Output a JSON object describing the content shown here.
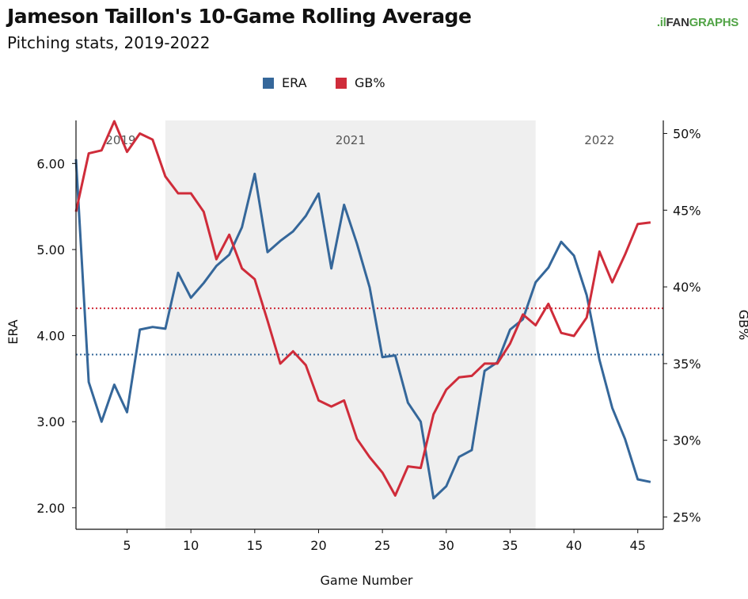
{
  "header": {
    "title": "Jameson Taillon's 10-Game Rolling Average",
    "subtitle": "Pitching stats, 2019-2022",
    "logo_prefix": ".il",
    "logo_fan": "FAN",
    "logo_graphs": "GRAPHS"
  },
  "chart_data": {
    "type": "line",
    "xlabel": "Game Number",
    "ylabel_left": "ERA",
    "ylabel_right": "GB%",
    "xlim": [
      1,
      47
    ],
    "ylim_left": [
      1.75,
      6.5
    ],
    "ylim_right": [
      24.2,
      50.85
    ],
    "x_ticks": [
      5,
      10,
      15,
      20,
      25,
      30,
      35,
      40,
      45
    ],
    "y_ticks_left": [
      2.0,
      3.0,
      4.0,
      5.0,
      6.0
    ],
    "y_tick_labels_left": [
      "2.00",
      "3.00",
      "4.00",
      "5.00",
      "6.00"
    ],
    "y_ticks_right": [
      25,
      30,
      35,
      40,
      45,
      50
    ],
    "y_tick_labels_right": [
      "25%",
      "30%",
      "35%",
      "40%",
      "45%",
      "50%"
    ],
    "legend_position": "top-center",
    "grid": false,
    "eras": [
      {
        "label": "2019",
        "start": 1,
        "end": 8,
        "shaded": false
      },
      {
        "label": "2021",
        "start": 8,
        "end": 37,
        "shaded": true
      },
      {
        "label": "2022",
        "start": 37,
        "end": 47,
        "shaded": false
      }
    ],
    "x": [
      1,
      2,
      3,
      4,
      5,
      6,
      7,
      8,
      9,
      10,
      11,
      12,
      13,
      14,
      15,
      16,
      17,
      18,
      19,
      20,
      21,
      22,
      23,
      24,
      25,
      26,
      27,
      28,
      29,
      30,
      31,
      32,
      33,
      34,
      35,
      36,
      37,
      38,
      39,
      40,
      41,
      42,
      43,
      44,
      45,
      46
    ],
    "series": [
      {
        "name": "ERA",
        "axis": "left",
        "color": "#35679a",
        "values": [
          6.05,
          3.46,
          3.0,
          3.43,
          3.11,
          4.07,
          4.1,
          4.08,
          4.73,
          4.44,
          4.61,
          4.81,
          4.94,
          5.26,
          5.88,
          4.97,
          5.1,
          5.21,
          5.39,
          5.65,
          4.78,
          5.52,
          5.07,
          4.56,
          3.75,
          3.77,
          3.22,
          3.0,
          2.11,
          2.25,
          2.59,
          2.67,
          3.59,
          3.69,
          4.07,
          4.19,
          4.62,
          4.79,
          5.09,
          4.93,
          4.47,
          3.72,
          3.16,
          2.8,
          2.33,
          2.3
        ]
      },
      {
        "name": "GB%",
        "axis": "right",
        "color": "#cf2c3a",
        "values": [
          44.9,
          48.7,
          48.9,
          50.8,
          48.8,
          50.0,
          49.6,
          47.2,
          46.1,
          46.1,
          44.9,
          41.8,
          43.4,
          41.2,
          40.5,
          37.8,
          35.0,
          35.8,
          34.9,
          32.6,
          32.2,
          32.6,
          30.1,
          28.9,
          27.9,
          26.4,
          28.3,
          28.2,
          31.7,
          33.3,
          34.1,
          34.2,
          35.0,
          35.0,
          36.3,
          38.2,
          37.5,
          38.9,
          37.0,
          36.8,
          38.0,
          42.3,
          40.3,
          42.1,
          44.1,
          44.2
        ]
      }
    ],
    "reference_lines": [
      {
        "series": "ERA",
        "axis": "left",
        "value": 3.78,
        "color": "#35679a",
        "style": "dotted"
      },
      {
        "series": "GB%",
        "axis": "right",
        "value": 38.6,
        "color": "#cf2c3a",
        "style": "dotted"
      }
    ]
  }
}
